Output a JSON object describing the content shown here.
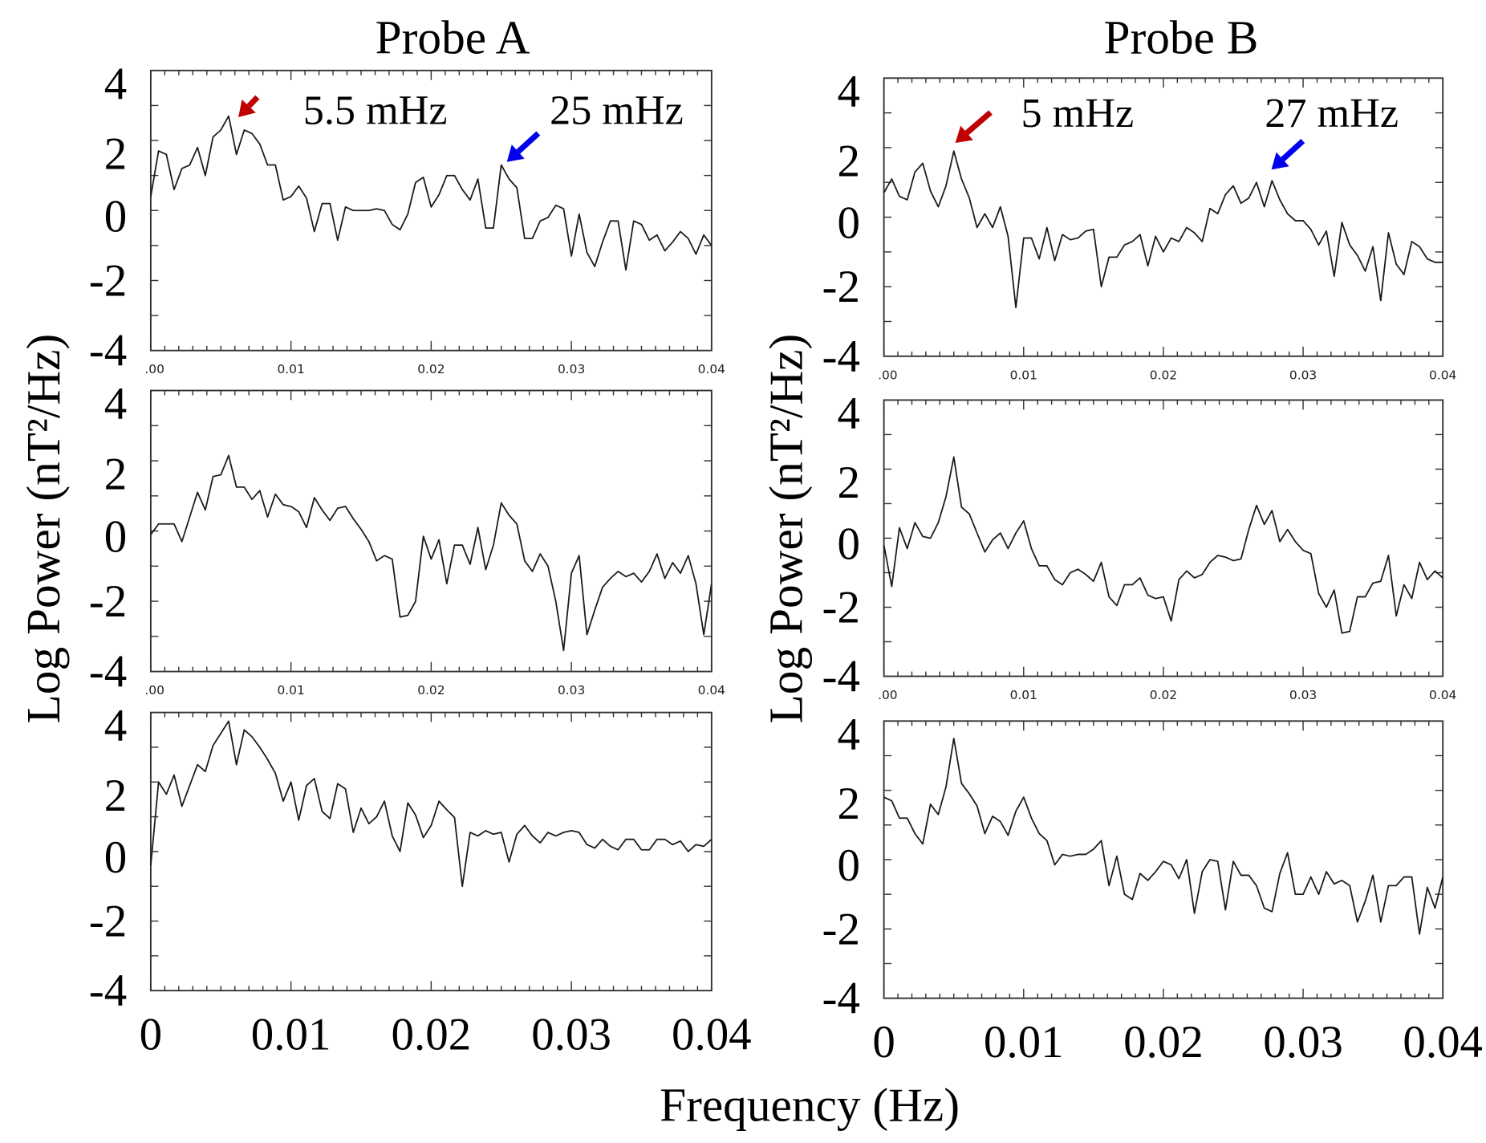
{
  "figure": {
    "ylabel": "Log Power  (nT²/Hz)",
    "xlabel": "Frequency (Hz)",
    "columns": [
      "Probe A",
      "Probe B"
    ]
  },
  "colors": {
    "line": "#1a1a1a",
    "red_arrow": "#c00000",
    "blue_arrow": "#0000ee"
  },
  "chart_data": [
    {
      "type": "line",
      "title": "Probe A",
      "panel": "top",
      "xlim": [
        0,
        0.04
      ],
      "ylim": [
        -4,
        4
      ],
      "x_start": 0,
      "x_end": 0.04,
      "xticks": [
        0,
        0.01,
        0.02,
        0.03,
        0.04
      ],
      "xticklabels": [
        ".00",
        "0.01",
        "0.02",
        "0.03",
        "0.04"
      ],
      "yticks": [
        4,
        2,
        0,
        -2,
        -4
      ],
      "yticklabels": [
        "4",
        "2",
        "0",
        "-2",
        "-4"
      ],
      "annotations": [
        {
          "text": "5.5 mHz",
          "x": 0.0055,
          "color": "red"
        },
        {
          "text": "25 mHz",
          "x": 0.025,
          "color": "blue"
        }
      ],
      "values": [
        0.4,
        1.7,
        1.6,
        0.6,
        1.2,
        1.3,
        1.8,
        1.0,
        2.1,
        2.3,
        2.7,
        1.6,
        2.3,
        2.2,
        1.9,
        1.3,
        1.3,
        0.3,
        0.4,
        0.7,
        0.35,
        -0.6,
        0.2,
        0.2,
        -0.85,
        0.1,
        0,
        0,
        0,
        0.05,
        0,
        -0.4,
        -0.55,
        -0.1,
        0.8,
        0.95,
        0.1,
        0.45,
        1.0,
        1.0,
        0.6,
        0.3,
        0.9,
        -0.5,
        -0.5,
        1.3,
        0.9,
        0.65,
        -0.8,
        -0.8,
        -0.3,
        -0.2,
        0.15,
        0.05,
        -1.3,
        -0.1,
        -1.2,
        -1.6,
        -0.9,
        -0.3,
        -0.3,
        -1.7,
        -0.3,
        -0.4,
        -0.85,
        -0.7,
        -1.15,
        -0.9,
        -0.6,
        -0.8,
        -1.25,
        -0.7,
        -1.0
      ]
    },
    {
      "type": "line",
      "title": "Probe A",
      "panel": "middle",
      "xlim": [
        0,
        0.04
      ],
      "ylim": [
        -4,
        4
      ],
      "x_start": 0,
      "x_end": 0.04,
      "xticks": [
        0,
        0.01,
        0.02,
        0.03,
        0.04
      ],
      "xticklabels": [
        ".00",
        "0.01",
        "0.02",
        "0.03",
        "0.04"
      ],
      "yticks": [
        4,
        2,
        0,
        -2,
        -4
      ],
      "yticklabels": [
        "4",
        "2",
        "0",
        "-2",
        "-4"
      ],
      "values": [
        -0.1,
        0.2,
        0.2,
        0.2,
        -0.3,
        0.4,
        1.1,
        0.6,
        1.55,
        1.6,
        2.15,
        1.25,
        1.25,
        0.9,
        1.15,
        0.4,
        1.05,
        0.75,
        0.7,
        0.55,
        0.1,
        0.95,
        0.6,
        0.3,
        0.65,
        0.7,
        0.35,
        0.05,
        -0.3,
        -0.85,
        -0.7,
        -0.8,
        -2.45,
        -2.4,
        -2.0,
        -0.15,
        -0.8,
        -0.25,
        -1.5,
        -0.4,
        -0.4,
        -0.95,
        0.1,
        -1.1,
        -0.4,
        0.8,
        0.45,
        0.2,
        -0.85,
        -1.15,
        -0.65,
        -1.0,
        -2.0,
        -3.4,
        -1.2,
        -0.7,
        -2.95,
        -2.25,
        -1.6,
        -1.35,
        -1.15,
        -1.3,
        -1.2,
        -1.45,
        -1.15,
        -0.65,
        -1.35,
        -0.9,
        -1.2,
        -0.7,
        -1.5,
        -2.95,
        -1.5
      ]
    },
    {
      "type": "line",
      "title": "Probe A",
      "panel": "bottom",
      "xlim": [
        0,
        0.04
      ],
      "ylim": [
        -4,
        4
      ],
      "x_start": 0,
      "x_end": 0.04,
      "xticks": [
        0,
        0.01,
        0.02,
        0.03,
        0.04
      ],
      "xticklabels": [
        "0",
        "0.01",
        "0.02",
        "0.03",
        "0.04"
      ],
      "yticks": [
        4,
        2,
        0,
        -2,
        -4
      ],
      "yticklabels": [
        "4",
        "2",
        "0",
        "-2",
        "-4"
      ],
      "values": [
        -0.4,
        2.0,
        1.65,
        2.2,
        1.3,
        1.9,
        2.5,
        2.3,
        3.05,
        3.4,
        3.75,
        2.5,
        3.5,
        3.3,
        3.0,
        2.65,
        2.25,
        1.45,
        2.0,
        0.9,
        1.9,
        2.1,
        1.15,
        0.95,
        1.95,
        1.8,
        0.55,
        1.25,
        0.8,
        1.0,
        1.45,
        0.45,
        0,
        1.4,
        1.05,
        0.4,
        0.75,
        1.45,
        1.2,
        0.98,
        -1.0,
        0.55,
        0.45,
        0.6,
        0.5,
        0.55,
        -0.3,
        0.5,
        0.75,
        0.45,
        0.25,
        0.55,
        0.45,
        0.55,
        0.6,
        0.55,
        0.2,
        0.1,
        0.35,
        0.15,
        0.05,
        0.35,
        0.35,
        0.05,
        0.05,
        0.35,
        0.35,
        0.2,
        0.3,
        0,
        0.2,
        0.15,
        0.35
      ]
    },
    {
      "type": "line",
      "title": "Probe B",
      "panel": "top",
      "xlim": [
        0,
        0.04
      ],
      "ylim": [
        -4,
        4
      ],
      "x_start": 0,
      "x_end": 0.04,
      "xticks": [
        0,
        0.01,
        0.02,
        0.03,
        0.04
      ],
      "xticklabels": [
        ".00",
        "0.01",
        "0.02",
        "0.03",
        "0.04"
      ],
      "yticks": [
        4,
        2,
        0,
        -2,
        -4
      ],
      "yticklabels": [
        "4",
        "2",
        "0",
        "-2",
        "-4"
      ],
      "annotations": [
        {
          "text": "5 mHz",
          "x": 0.005,
          "color": "red"
        },
        {
          "text": "27 mHz",
          "x": 0.0275,
          "color": "blue"
        }
      ],
      "values": [
        0.7,
        1.1,
        0.6,
        0.5,
        1.3,
        1.55,
        0.75,
        0.3,
        0.9,
        1.9,
        1.1,
        0.55,
        -0.3,
        0.1,
        -0.3,
        0.3,
        -0.55,
        -2.6,
        -0.6,
        -0.6,
        -1.2,
        -0.3,
        -1.25,
        -0.5,
        -0.65,
        -0.6,
        -0.4,
        -0.35,
        -2.0,
        -1.15,
        -1.15,
        -0.8,
        -0.7,
        -0.5,
        -1.4,
        -0.55,
        -1.0,
        -0.6,
        -0.7,
        -0.3,
        -0.45,
        -0.7,
        0.25,
        0.1,
        0.65,
        0.9,
        0.4,
        0.55,
        1.0,
        0.3,
        1.05,
        0.5,
        0.1,
        -0.1,
        -0.1,
        -0.35,
        -0.8,
        -0.4,
        -1.7,
        -0.15,
        -0.8,
        -1.1,
        -1.55,
        -0.85,
        -2.4,
        -0.45,
        -1.35,
        -1.65,
        -0.7,
        -0.85,
        -1.2,
        -1.3,
        -1.3
      ]
    },
    {
      "type": "line",
      "title": "Probe B",
      "panel": "middle",
      "xlim": [
        0,
        0.04
      ],
      "ylim": [
        -4,
        4
      ],
      "x_start": 0,
      "x_end": 0.04,
      "xticks": [
        0,
        0.01,
        0.02,
        0.03,
        0.04
      ],
      "xticklabels": [
        ".00",
        "0.01",
        "0.02",
        "0.03",
        "0.04"
      ],
      "yticks": [
        4,
        2,
        0,
        -2,
        -4
      ],
      "yticklabels": [
        "4",
        "2",
        "0",
        "-2",
        "-4"
      ],
      "values": [
        -0.2,
        -1.4,
        0.3,
        -0.3,
        0.45,
        0.05,
        0,
        0.45,
        1.2,
        2.35,
        0.9,
        0.7,
        0.15,
        -0.4,
        -0.05,
        0.15,
        -0.3,
        0.15,
        0.5,
        -0.3,
        -0.8,
        -0.8,
        -1.2,
        -1.35,
        -1.0,
        -0.9,
        -1.05,
        -1.25,
        -0.7,
        -1.7,
        -1.95,
        -1.35,
        -1.35,
        -1.15,
        -1.65,
        -1.75,
        -1.7,
        -2.4,
        -1.2,
        -0.95,
        -1.15,
        -1.05,
        -0.7,
        -0.5,
        -0.55,
        -0.65,
        -0.6,
        0.25,
        0.95,
        0.4,
        0.8,
        -0.1,
        0.25,
        -0.1,
        -0.35,
        -0.45,
        -1.6,
        -2.0,
        -1.5,
        -2.75,
        -2.7,
        -1.7,
        -1.7,
        -1.3,
        -1.25,
        -0.5,
        -2.25,
        -1.35,
        -1.75,
        -0.7,
        -1.2,
        -0.95,
        -1.15
      ]
    },
    {
      "type": "line",
      "title": "Probe B",
      "panel": "bottom",
      "xlim": [
        0,
        0.04
      ],
      "ylim": [
        -4,
        4
      ],
      "x_start": 0,
      "x_end": 0.04,
      "xticks": [
        0,
        0.01,
        0.02,
        0.03,
        0.04
      ],
      "xticklabels": [
        "0",
        "0.01",
        "0.02",
        "0.03",
        "0.04"
      ],
      "yticks": [
        4,
        2,
        0,
        -2,
        -4
      ],
      "yticklabels": [
        "4",
        "2",
        "0",
        "-2",
        "-4"
      ],
      "values": [
        1.8,
        1.7,
        1.2,
        1.2,
        0.75,
        0.45,
        1.6,
        1.3,
        2.1,
        3.5,
        2.2,
        1.9,
        1.55,
        0.75,
        1.25,
        1.1,
        0.7,
        1.4,
        1.8,
        1.2,
        0.75,
        0.55,
        -0.15,
        0.15,
        0.1,
        0.15,
        0.15,
        0.3,
        0.55,
        -0.75,
        0.1,
        -1.0,
        -1.15,
        -0.4,
        -0.6,
        -0.35,
        -0.05,
        -0.15,
        -0.55,
        0,
        -1.55,
        -0.35,
        0,
        -0.05,
        -1.45,
        -0.05,
        -0.45,
        -0.45,
        -0.75,
        -1.4,
        -1.5,
        -0.4,
        0.2,
        -1.0,
        -1.0,
        -0.5,
        -1.0,
        -0.35,
        -0.7,
        -0.6,
        -0.75,
        -1.8,
        -1.2,
        -0.45,
        -1.8,
        -0.75,
        -0.75,
        -0.5,
        -0.5,
        -2.15,
        -0.8,
        -1.4,
        -0.5
      ]
    }
  ]
}
